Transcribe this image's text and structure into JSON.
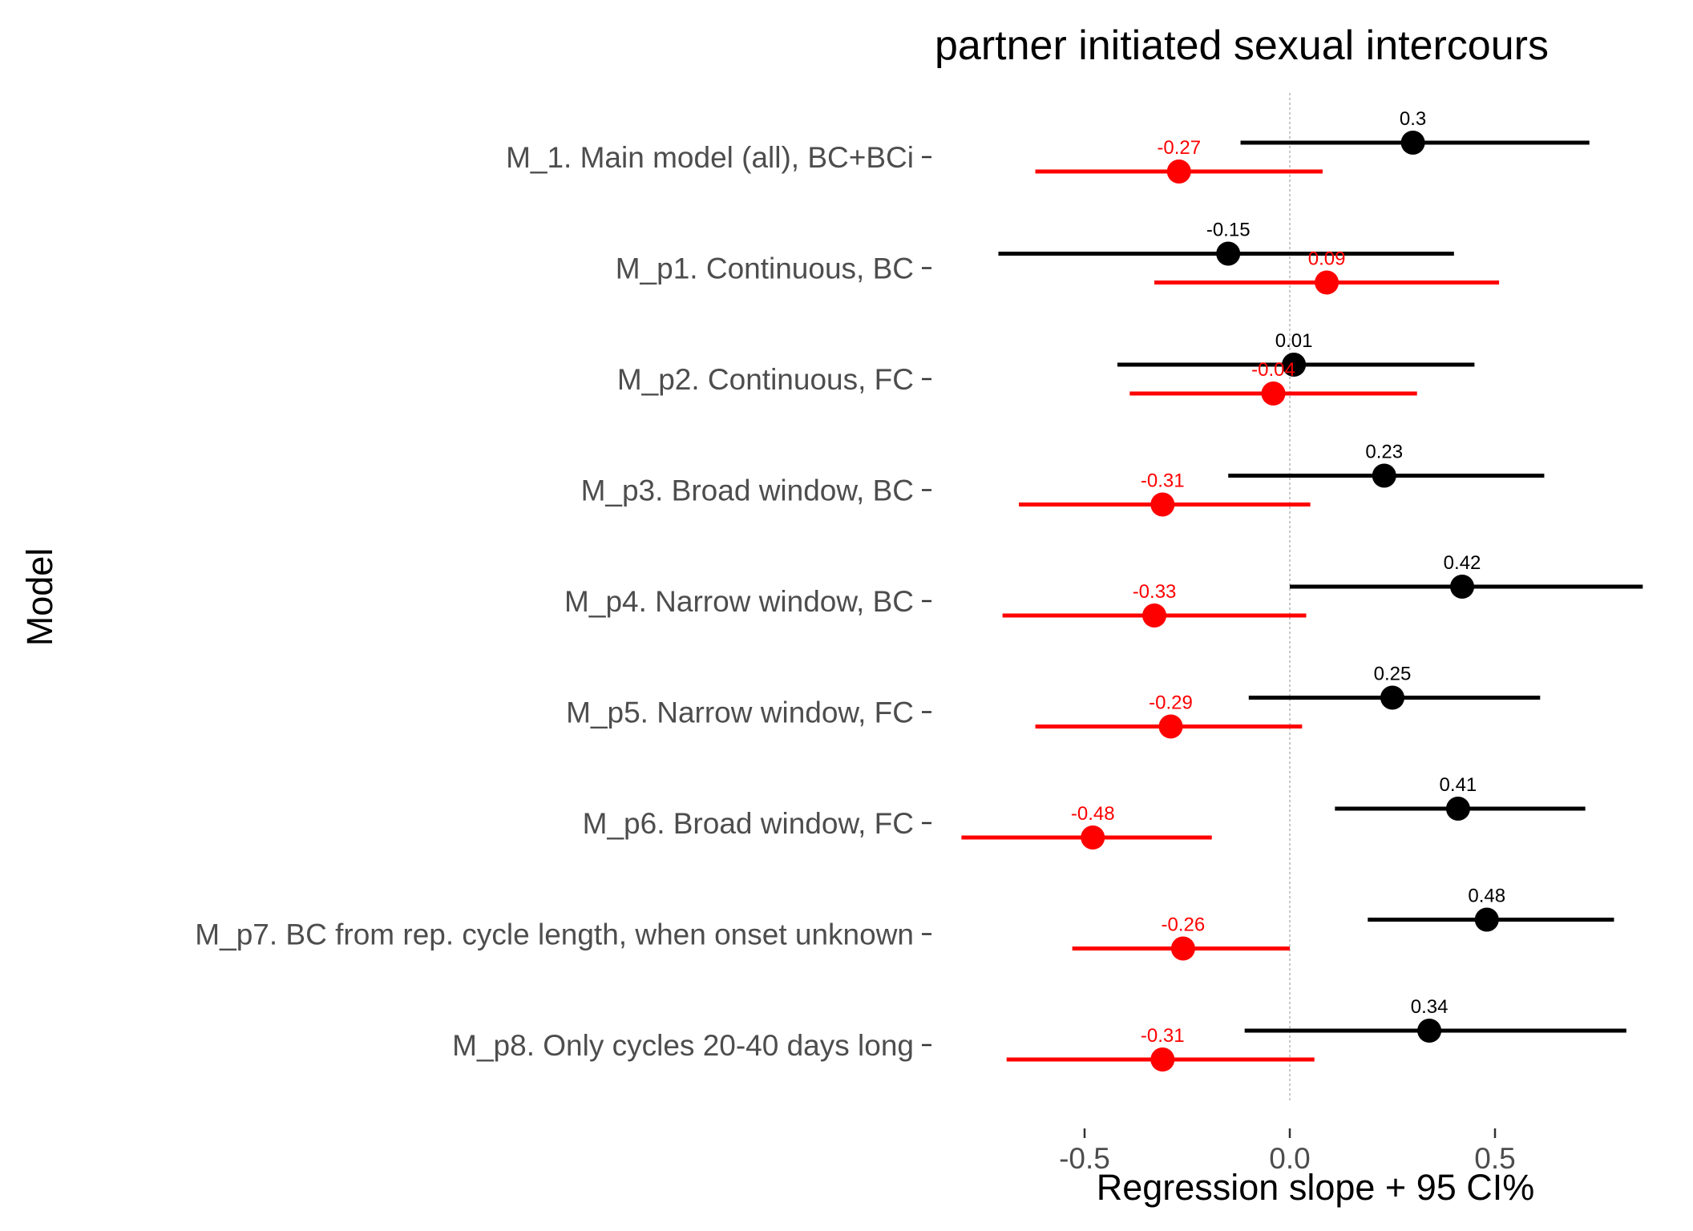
{
  "chart_data": {
    "type": "scatter",
    "title": "partner initiated sexual intercours",
    "xlabel": "Regression slope + 95 CI%",
    "ylabel": "Model",
    "xlim": [
      -0.87,
      0.9
    ],
    "x_ticks": [
      -0.5,
      0.0,
      0.5
    ],
    "x_tick_labels": [
      "-0.5",
      "0.0",
      "0.5"
    ],
    "reference_line_x": 0,
    "grid": false,
    "legend": "none",
    "categories": [
      "M_1. Main model (all), BC+BCi",
      "M_p1. Continuous, BC",
      "M_p2. Continuous, FC",
      "M_p3. Broad window, BC",
      "M_p4. Narrow window, BC",
      "M_p5. Narrow window, FC",
      "M_p6. Broad window, FC",
      "M_p7. BC from rep. cycle length, when onset unknown",
      "M_p8. Only cycles 20-40 days long"
    ],
    "series": [
      {
        "color": "#000000",
        "estimates": [
          0.3,
          -0.15,
          0.01,
          0.23,
          0.42,
          0.25,
          0.41,
          0.48,
          0.34
        ],
        "labels": [
          "0.3",
          "-0.15",
          "0.01",
          "0.23",
          "0.42",
          "0.25",
          "0.41",
          "0.48",
          "0.34"
        ],
        "lower": [
          -0.12,
          -0.71,
          -0.42,
          -0.15,
          0.0,
          -0.1,
          0.11,
          0.19,
          -0.11
        ],
        "upper": [
          0.73,
          0.4,
          0.45,
          0.62,
          0.86,
          0.61,
          0.72,
          0.79,
          0.82
        ]
      },
      {
        "color": "#ff0000",
        "estimates": [
          -0.27,
          0.09,
          -0.04,
          -0.31,
          -0.33,
          -0.29,
          -0.48,
          -0.26,
          -0.31
        ],
        "labels": [
          "-0.27",
          "0.09",
          "-0.04",
          "-0.31",
          "-0.33",
          "-0.29",
          "-0.48",
          "-0.26",
          "-0.31"
        ],
        "lower": [
          -0.62,
          -0.33,
          -0.39,
          -0.66,
          -0.7,
          -0.62,
          -0.8,
          -0.53,
          -0.69
        ],
        "upper": [
          0.08,
          0.51,
          0.31,
          0.05,
          0.04,
          0.03,
          -0.19,
          0.0,
          0.06
        ]
      }
    ]
  }
}
